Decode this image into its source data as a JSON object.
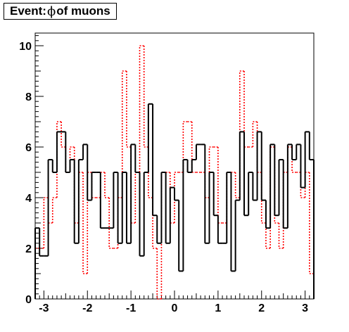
{
  "title": {
    "prefix": "Event: ",
    "symbol": "ϕ",
    "suffix": " of muons"
  },
  "chart_data": {
    "type": "histogram",
    "xlim": [
      -3.2,
      3.2
    ],
    "ylim": [
      0,
      10.5
    ],
    "x_ticks": [
      -3,
      -2,
      -1,
      0,
      1,
      2,
      3
    ],
    "y_ticks": [
      0,
      2,
      4,
      6,
      8,
      10
    ],
    "x_tick_labels": [
      "-3",
      "-2",
      "-1",
      "0",
      "1",
      "2",
      "3"
    ],
    "y_tick_labels": [
      "0",
      "2",
      "4",
      "6",
      "8",
      "10"
    ],
    "grid": false,
    "legend": "none",
    "bin_edges": [
      -3.2,
      -3.1,
      -3.0,
      -2.9,
      -2.8,
      -2.7,
      -2.6,
      -2.5,
      -2.4,
      -2.3,
      -2.2,
      -2.1,
      -2.0,
      -1.9,
      -1.8,
      -1.7,
      -1.6,
      -1.5,
      -1.4,
      -1.3,
      -1.2,
      -1.1,
      -1.0,
      -0.9,
      -0.8,
      -0.7,
      -0.6,
      -0.5,
      -0.4,
      -0.3,
      -0.2,
      -0.1,
      0.0,
      0.1,
      0.2,
      0.3,
      0.4,
      0.5,
      0.6,
      0.7,
      0.8,
      0.9,
      1.0,
      1.1,
      1.2,
      1.3,
      1.4,
      1.5,
      1.6,
      1.7,
      1.8,
      1.9,
      2.0,
      2.1,
      2.2,
      2.3,
      2.4,
      2.5,
      2.6,
      2.7,
      2.8,
      2.9,
      3.0,
      3.1,
      3.2
    ],
    "series": [
      {
        "style": "solid",
        "color": "#000000",
        "values": [
          2.8,
          1.7,
          1.7,
          5.5,
          5.0,
          6.6,
          6.6,
          5.0,
          5.5,
          2.2,
          5.5,
          6.1,
          3.9,
          5.0,
          5.0,
          2.8,
          2.8,
          2.8,
          5.0,
          2.2,
          5.0,
          2.2,
          6.1,
          5.0,
          1.7,
          5.0,
          7.7,
          3.3,
          2.2,
          5.0,
          2.2,
          4.4,
          3.9,
          1.1,
          5.5,
          5.0,
          5.5,
          6.1,
          6.1,
          2.2,
          5.0,
          3.3,
          2.2,
          2.2,
          5.0,
          1.1,
          3.9,
          6.6,
          3.3,
          5.0,
          3.9,
          6.6,
          3.9,
          2.8,
          6.1,
          3.3,
          5.5,
          2.8,
          6.1,
          5.5,
          6.1,
          4.4,
          6.6,
          5.5
        ]
      },
      {
        "style": "dotted",
        "color": "#ff0000",
        "values": [
          2.0,
          2.0,
          4.0,
          3.0,
          4.0,
          7.0,
          6.0,
          5.0,
          6.0,
          3.0,
          5.0,
          1.0,
          5.0,
          4.0,
          4.0,
          5.0,
          4.0,
          2.0,
          2.0,
          4.0,
          9.0,
          6.0,
          3.0,
          5.0,
          10.0,
          6.0,
          4.0,
          2.0,
          0.0,
          5.0,
          5.0,
          3.0,
          5.0,
          5.0,
          7.0,
          7.0,
          5.0,
          5.0,
          5.0,
          4.0,
          6.0,
          6.0,
          3.0,
          3.0,
          5.0,
          5.0,
          4.0,
          9.0,
          6.0,
          6.0,
          7.0,
          5.0,
          3.0,
          2.0,
          6.0,
          3.0,
          2.0,
          5.0,
          6.0,
          5.0,
          5.0,
          4.0,
          5.0,
          1.0
        ]
      }
    ]
  }
}
